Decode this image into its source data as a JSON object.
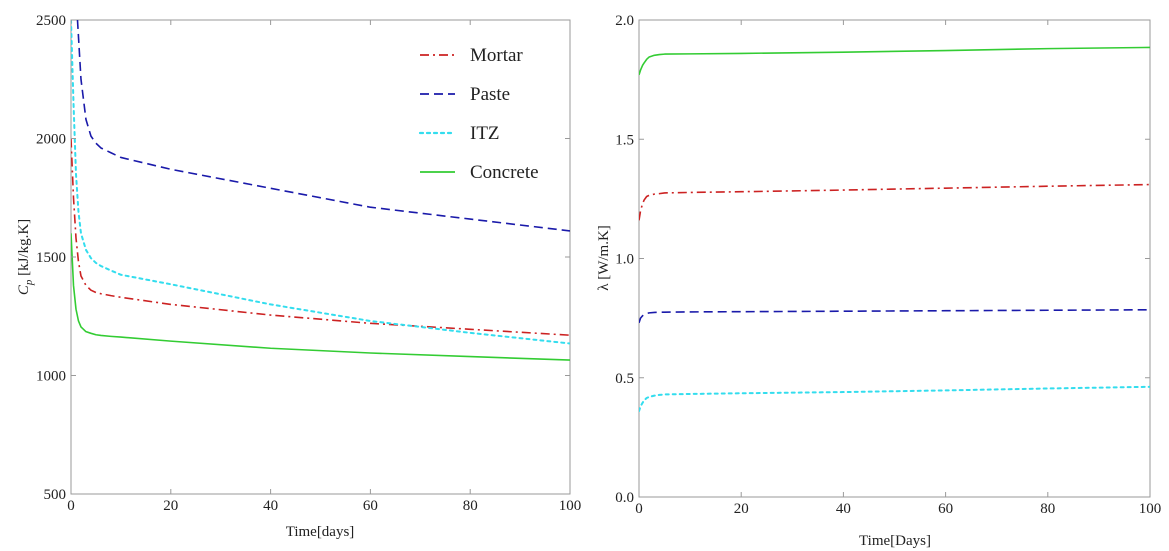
{
  "chart_data": [
    {
      "type": "line",
      "xlabel": "Time[days]",
      "ylabel": "C_p [kJ/kg.K]",
      "ylabel_main": "C",
      "ylabel_sub": "p",
      "ylabel_rest": " [kJ/kg.K]",
      "xlim": [
        0,
        100
      ],
      "ylim": [
        500,
        2500
      ],
      "xticks": [
        0,
        20,
        40,
        60,
        80,
        100
      ],
      "yticks": [
        500,
        1000,
        1500,
        2000,
        2500
      ],
      "grid": false,
      "legend_position": "top-right",
      "series": [
        {
          "name": "Mortar",
          "color": "#cc2222",
          "dash": "dashdot",
          "x": [
            0,
            0.5,
            1,
            1.5,
            2,
            3,
            4,
            5,
            6,
            8,
            10,
            20,
            40,
            60,
            80,
            100
          ],
          "y": [
            2000,
            1750,
            1580,
            1480,
            1420,
            1380,
            1360,
            1350,
            1345,
            1337,
            1330,
            1300,
            1255,
            1220,
            1195,
            1170
          ]
        },
        {
          "name": "Paste",
          "color": "#1a1aaa",
          "dash": "dashed",
          "x": [
            1.3,
            2,
            3,
            4,
            5,
            6,
            8,
            10,
            20,
            40,
            60,
            80,
            100
          ],
          "y": [
            2500,
            2250,
            2080,
            2010,
            1980,
            1960,
            1940,
            1920,
            1870,
            1790,
            1710,
            1660,
            1610
          ]
        },
        {
          "name": "ITZ",
          "color": "#33ddee",
          "dash": "dotted",
          "x": [
            0,
            0.5,
            1,
            1.5,
            2,
            3,
            4,
            5,
            6,
            8,
            10,
            20,
            40,
            60,
            80,
            100
          ],
          "y": [
            2500,
            2150,
            1850,
            1690,
            1600,
            1530,
            1495,
            1475,
            1462,
            1443,
            1425,
            1385,
            1300,
            1230,
            1180,
            1135
          ]
        },
        {
          "name": "Concrete",
          "color": "#33cc33",
          "dash": "solid",
          "x": [
            0,
            0.5,
            1,
            1.5,
            2,
            3,
            4,
            5,
            6,
            8,
            10,
            20,
            40,
            60,
            80,
            100
          ],
          "y": [
            1600,
            1380,
            1280,
            1230,
            1205,
            1185,
            1178,
            1172,
            1169,
            1165,
            1162,
            1145,
            1115,
            1095,
            1080,
            1065
          ]
        }
      ]
    },
    {
      "type": "line",
      "xlabel": "Time[Days]",
      "ylabel": "λ [W/m.K]",
      "xlim": [
        0,
        100
      ],
      "ylim": [
        0,
        2
      ],
      "xticks": [
        0,
        20,
        40,
        60,
        80,
        100
      ],
      "yticks": [
        "0.0",
        "0.5",
        "1.0",
        "1.5",
        "2.0"
      ],
      "grid": false,
      "legend_position": "none",
      "series": [
        {
          "color": "#33cc33",
          "dash": "solid",
          "x": [
            0,
            0.3,
            0.7,
            1,
            1.5,
            2,
            3,
            4,
            5,
            10,
            20,
            40,
            60,
            80,
            100
          ],
          "y": [
            1.77,
            1.79,
            1.81,
            1.82,
            1.835,
            1.845,
            1.852,
            1.855,
            1.857,
            1.858,
            1.86,
            1.865,
            1.872,
            1.88,
            1.885
          ]
        },
        {
          "color": "#cc2222",
          "dash": "dashdot",
          "x": [
            0,
            0.3,
            0.7,
            1,
            1.5,
            2,
            3,
            4,
            5,
            10,
            20,
            40,
            60,
            80,
            100
          ],
          "y": [
            1.16,
            1.2,
            1.23,
            1.245,
            1.26,
            1.265,
            1.27,
            1.272,
            1.275,
            1.277,
            1.28,
            1.287,
            1.295,
            1.303,
            1.31
          ]
        },
        {
          "color": "#1a1aaa",
          "dash": "dashed",
          "x": [
            0,
            0.3,
            0.7,
            1,
            1.5,
            2,
            3,
            4,
            5,
            10,
            20,
            40,
            60,
            80,
            100
          ],
          "y": [
            0.73,
            0.75,
            0.76,
            0.765,
            0.77,
            0.772,
            0.774,
            0.775,
            0.775,
            0.776,
            0.777,
            0.779,
            0.781,
            0.783,
            0.785
          ]
        },
        {
          "color": "#33ddee",
          "dash": "dotted",
          "x": [
            0,
            0.3,
            0.7,
            1,
            1.5,
            2,
            3,
            4,
            5,
            10,
            20,
            40,
            60,
            80,
            100
          ],
          "y": [
            0.36,
            0.38,
            0.395,
            0.405,
            0.415,
            0.42,
            0.425,
            0.428,
            0.43,
            0.432,
            0.435,
            0.44,
            0.447,
            0.455,
            0.462
          ]
        }
      ]
    }
  ]
}
